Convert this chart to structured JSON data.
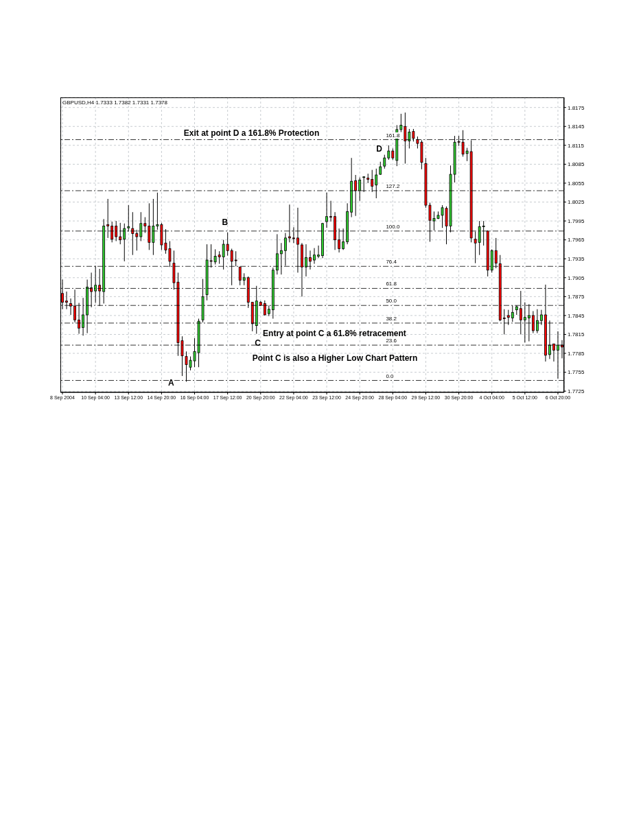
{
  "chart_data": {
    "type": "candlestick",
    "title": "GBPUSD,H4 1.7333 1.7382 1.7331 1.7378",
    "categories": [
      "8 Sep 2004",
      null,
      null,
      null,
      null,
      null,
      null,
      null,
      "10 Sep 04:00",
      null,
      null,
      null,
      null,
      null,
      null,
      null,
      "13 Sep 12:00",
      null,
      null,
      null,
      null,
      null,
      null,
      null,
      "14 Sep 20:00",
      null,
      null,
      null,
      null,
      null,
      null,
      null,
      "16 Sep 04:00",
      null,
      null,
      null,
      null,
      null,
      null,
      null,
      "17 Sep 12:00",
      null,
      null,
      null,
      null,
      null,
      null,
      null,
      "20 Sep 20:00",
      null,
      null,
      null,
      null,
      null,
      null,
      null,
      "22 Sep 04:00",
      null,
      null,
      null,
      null,
      null,
      null,
      null,
      "23 Sep 12:00",
      null,
      null,
      null,
      null,
      null,
      null,
      null,
      "24 Sep 20:00",
      null,
      null,
      null,
      null,
      null,
      null,
      null,
      "28 Sep 04:00",
      null,
      null,
      null,
      null,
      null,
      null,
      null,
      "29 Sep 12:00",
      null,
      null,
      null,
      null,
      null,
      null,
      null,
      "30 Sep 20:00",
      null,
      null,
      null,
      null,
      null,
      null,
      null,
      "4 Oct 04:00",
      null,
      null,
      null,
      null,
      null,
      null,
      null,
      "5 Oct 12:00",
      null,
      null,
      null,
      null,
      null,
      null,
      null,
      "6 Oct 20:00",
      null
    ],
    "ohlc": [
      [
        1.788,
        1.7902,
        1.7855,
        1.7866
      ],
      [
        1.7868,
        1.7883,
        1.7855,
        1.7866
      ],
      [
        1.7864,
        1.7872,
        1.7846,
        1.786
      ],
      [
        1.786,
        1.7886,
        1.7834,
        1.7838
      ],
      [
        1.7838,
        1.7865,
        1.7816,
        1.7825
      ],
      [
        1.7826,
        1.7873,
        1.7813,
        1.7846
      ],
      [
        1.7846,
        1.7902,
        1.7817,
        1.789
      ],
      [
        1.7889,
        1.7913,
        1.7858,
        1.7883
      ],
      [
        1.7884,
        1.7924,
        1.7865,
        1.7893
      ],
      [
        1.7893,
        1.7919,
        1.786,
        1.7884
      ],
      [
        1.7883,
        1.7998,
        1.7864,
        1.7987
      ],
      [
        1.7989,
        1.803,
        1.7968,
        1.7987
      ],
      [
        1.7987,
        1.7994,
        1.7961,
        1.7966
      ],
      [
        1.7987,
        1.7995,
        1.7963,
        1.797
      ],
      [
        1.797,
        1.7992,
        1.7958,
        1.7965
      ],
      [
        1.7966,
        1.7991,
        1.7931,
        1.7983
      ],
      [
        1.7984,
        1.802,
        1.7978,
        1.7986
      ],
      [
        1.7983,
        1.8009,
        1.7941,
        1.7975
      ],
      [
        1.7975,
        1.7981,
        1.7948,
        1.797
      ],
      [
        1.797,
        1.8009,
        1.7963,
        1.7991
      ],
      [
        1.7991,
        1.8001,
        1.7976,
        1.7987
      ],
      [
        1.7987,
        1.8023,
        1.7949,
        1.7961
      ],
      [
        1.7961,
        1.803,
        1.7941,
        1.7987
      ],
      [
        1.7987,
        1.804,
        1.7981,
        1.7989
      ],
      [
        1.7989,
        1.7992,
        1.7949,
        1.7957
      ],
      [
        1.796,
        1.7982,
        1.7943,
        1.7949
      ],
      [
        1.7951,
        1.7963,
        1.7922,
        1.7931
      ],
      [
        1.7928,
        1.7948,
        1.7886,
        1.7897
      ],
      [
        1.7898,
        1.7913,
        1.7781,
        1.7802
      ],
      [
        1.7805,
        1.7812,
        1.7749,
        1.7781
      ],
      [
        1.778,
        1.7788,
        1.774,
        1.7767
      ],
      [
        1.7763,
        1.778,
        1.7758,
        1.7774
      ],
      [
        1.7773,
        1.7809,
        1.7763,
        1.7788
      ],
      [
        1.7786,
        1.784,
        1.7763,
        1.7836
      ],
      [
        1.7838,
        1.7903,
        1.7834,
        1.7875
      ],
      [
        1.7878,
        1.7958,
        1.7869,
        1.7933
      ],
      [
        1.7932,
        1.7958,
        1.7921,
        1.7931
      ],
      [
        1.793,
        1.795,
        1.7926,
        1.7939
      ],
      [
        1.7941,
        1.7947,
        1.7927,
        1.7938
      ],
      [
        1.7938,
        1.7965,
        1.7918,
        1.7958
      ],
      [
        1.7958,
        1.7977,
        1.794,
        1.7948
      ],
      [
        1.7948,
        1.7951,
        1.7893,
        1.7931
      ],
      [
        1.7933,
        1.7947,
        1.7923,
        1.7932
      ],
      [
        1.7922,
        1.7922,
        1.7893,
        1.7901
      ],
      [
        1.7901,
        1.7912,
        1.7893,
        1.7905
      ],
      [
        1.7905,
        1.7907,
        1.7857,
        1.7866
      ],
      [
        1.7866,
        1.7866,
        1.782,
        1.7832
      ],
      [
        1.7829,
        1.7892,
        1.7816,
        1.7868
      ],
      [
        1.7866,
        1.7868,
        1.786,
        1.7861
      ],
      [
        1.7864,
        1.7869,
        1.7845,
        1.7846
      ],
      [
        1.7848,
        1.7861,
        1.7844,
        1.7855
      ],
      [
        1.7854,
        1.7921,
        1.784,
        1.7917
      ],
      [
        1.7917,
        1.7974,
        1.791,
        1.7943
      ],
      [
        1.7943,
        1.796,
        1.791,
        1.7948
      ],
      [
        1.7948,
        1.7976,
        1.7924,
        1.7968
      ],
      [
        1.797,
        1.8021,
        1.7961,
        1.7968
      ],
      [
        1.7968,
        1.7985,
        1.796,
        1.7967
      ],
      [
        1.7968,
        1.8016,
        1.7913,
        1.7958
      ],
      [
        1.7957,
        1.796,
        1.7875,
        1.7922
      ],
      [
        1.7922,
        1.7958,
        1.7907,
        1.7937
      ],
      [
        1.7937,
        1.7948,
        1.7918,
        1.7931
      ],
      [
        1.7933,
        1.7952,
        1.7927,
        1.7941
      ],
      [
        1.7939,
        1.7956,
        1.7936,
        1.7941
      ],
      [
        1.794,
        1.7992,
        1.7936,
        1.7991
      ],
      [
        1.7994,
        1.804,
        1.7984,
        1.8002
      ],
      [
        1.8002,
        1.8027,
        1.7994,
        1.8001
      ],
      [
        1.8002,
        1.8009,
        1.7949,
        1.7965
      ],
      [
        1.7965,
        1.7983,
        1.7945,
        1.7951
      ],
      [
        1.7951,
        1.7983,
        1.7949,
        1.7962
      ],
      [
        1.7962,
        1.8023,
        1.7958,
        1.801
      ],
      [
        1.8009,
        1.8095,
        1.8001,
        1.8058
      ],
      [
        1.8059,
        1.8068,
        1.8003,
        1.8043
      ],
      [
        1.8043,
        1.8064,
        1.8027,
        1.806
      ],
      [
        1.8064,
        1.8066,
        1.8041,
        1.8065
      ],
      [
        1.8063,
        1.807,
        1.8055,
        1.8061
      ],
      [
        1.8061,
        1.8076,
        1.8041,
        1.805
      ],
      [
        1.8052,
        1.8078,
        1.8031,
        1.8068
      ],
      [
        1.8069,
        1.8089,
        1.8068,
        1.8081
      ],
      [
        1.8082,
        1.81,
        1.8078,
        1.8095
      ],
      [
        1.8095,
        1.8115,
        1.8092,
        1.8106
      ],
      [
        1.8106,
        1.811,
        1.8092,
        1.8095
      ],
      [
        1.8091,
        1.8147,
        1.8082,
        1.814
      ],
      [
        1.814,
        1.8165,
        1.8136,
        1.8147
      ],
      [
        1.8145,
        1.8167,
        1.8086,
        1.8122
      ],
      [
        1.8122,
        1.8141,
        1.811,
        1.8136
      ],
      [
        1.8137,
        1.8141,
        1.8121,
        1.8126
      ],
      [
        1.8124,
        1.8129,
        1.811,
        1.8118
      ],
      [
        1.812,
        1.8123,
        1.8077,
        1.8088
      ],
      [
        1.8086,
        1.8095,
        1.8016,
        1.802
      ],
      [
        1.802,
        1.8024,
        1.7962,
        1.7996
      ],
      [
        1.7995,
        1.801,
        1.798,
        1.7999
      ],
      [
        1.7999,
        1.801,
        1.7998,
        1.8004
      ],
      [
        1.8004,
        1.802,
        1.7984,
        1.8016
      ],
      [
        1.8015,
        1.8018,
        1.7958,
        1.7987
      ],
      [
        1.7987,
        1.8083,
        1.7977,
        1.8069
      ],
      [
        1.8069,
        1.813,
        1.8056,
        1.812
      ],
      [
        1.8121,
        1.813,
        1.8114,
        1.812
      ],
      [
        1.812,
        1.8139,
        1.8097,
        1.8101
      ],
      [
        1.8102,
        1.8111,
        1.809,
        1.8106
      ],
      [
        1.8105,
        1.8123,
        1.7961,
        1.7968
      ],
      [
        1.7966,
        1.7978,
        1.7928,
        1.796
      ],
      [
        1.7961,
        1.7995,
        1.7941,
        1.7986
      ],
      [
        1.7986,
        1.7995,
        1.7956,
        1.7987
      ],
      [
        1.7979,
        1.798,
        1.7907,
        1.7917
      ],
      [
        1.7917,
        1.795,
        1.7913,
        1.7948
      ],
      [
        1.7948,
        1.7968,
        1.792,
        1.7928
      ],
      [
        1.7927,
        1.7941,
        1.7836,
        1.7838
      ],
      [
        1.7841,
        1.7855,
        1.7815,
        1.784
      ],
      [
        1.7845,
        1.7854,
        1.783,
        1.7842
      ],
      [
        1.7841,
        1.7861,
        1.7835,
        1.785
      ],
      [
        1.7854,
        1.7861,
        1.7846,
        1.7859
      ],
      [
        1.7856,
        1.7884,
        1.7815,
        1.7838
      ],
      [
        1.7838,
        1.7866,
        1.7802,
        1.7842
      ],
      [
        1.7841,
        1.7863,
        1.7804,
        1.7845
      ],
      [
        1.7845,
        1.7852,
        1.7817,
        1.7821
      ],
      [
        1.7821,
        1.7855,
        1.7817,
        1.7837
      ],
      [
        1.7837,
        1.7854,
        1.783,
        1.7846
      ],
      [
        1.7846,
        1.7894,
        1.7772,
        1.7782
      ],
      [
        1.7783,
        1.7837,
        1.7776,
        1.7798
      ],
      [
        1.78,
        1.78,
        1.7772,
        1.779
      ],
      [
        1.779,
        1.782,
        1.7745,
        1.7798
      ],
      [
        1.7798,
        1.7806,
        1.7777,
        1.7795
      ]
    ],
    "ylim": [
      1.7723,
      1.8191
    ],
    "yticks": [
      1.7725,
      1.7755,
      1.7785,
      1.7815,
      1.7845,
      1.7875,
      1.7905,
      1.7935,
      1.7965,
      1.7995,
      1.8025,
      1.8055,
      1.8085,
      1.8115,
      1.8145,
      1.8175
    ],
    "grid": true,
    "ref_lines": [
      {
        "axis": "y",
        "value": 1.7742,
        "line_style": "dashed",
        "color": "#000000"
      },
      {
        "axis": "y",
        "value": 1.7798,
        "line_style": "dashed",
        "color": "#000000"
      },
      {
        "axis": "y",
        "value": 1.7833,
        "line_style": "dashed",
        "color": "#000000"
      },
      {
        "axis": "y",
        "value": 1.7861,
        "line_style": "dashed",
        "color": "#000000"
      },
      {
        "axis": "y",
        "value": 1.7888,
        "line_style": "dashed",
        "color": "#000000"
      },
      {
        "axis": "y",
        "value": 1.7923,
        "line_style": "dashed",
        "color": "#000000"
      },
      {
        "axis": "y",
        "value": 1.7979,
        "line_style": "dashed",
        "color": "#000000"
      },
      {
        "axis": "y",
        "value": 1.8043,
        "line_style": "dashed",
        "color": "#000000"
      },
      {
        "axis": "y",
        "value": 1.8124,
        "line_style": "dashed",
        "color": "#000000"
      }
    ],
    "annotations": [
      "Exit at point D a 161.8% Protection",
      "Entry at point C a 61.8% retracement",
      "Point C is also a Higher Low Chart Pattern",
      "A",
      "B",
      "C",
      "D",
      {
        "text": "0.0",
        "y": 1.7742
      },
      {
        "text": "23.6",
        "y": 1.7798
      },
      {
        "text": "38.2",
        "y": 1.7833
      },
      {
        "text": "50.0",
        "y": 1.7861
      },
      {
        "text": "61.8",
        "y": 1.7888
      },
      {
        "text": "76.4",
        "y": 1.7923
      },
      {
        "text": "100.0",
        "y": 1.7979
      },
      {
        "text": "127.2",
        "y": 1.8043
      },
      {
        "text": "161.8",
        "y": 1.8124
      }
    ]
  }
}
